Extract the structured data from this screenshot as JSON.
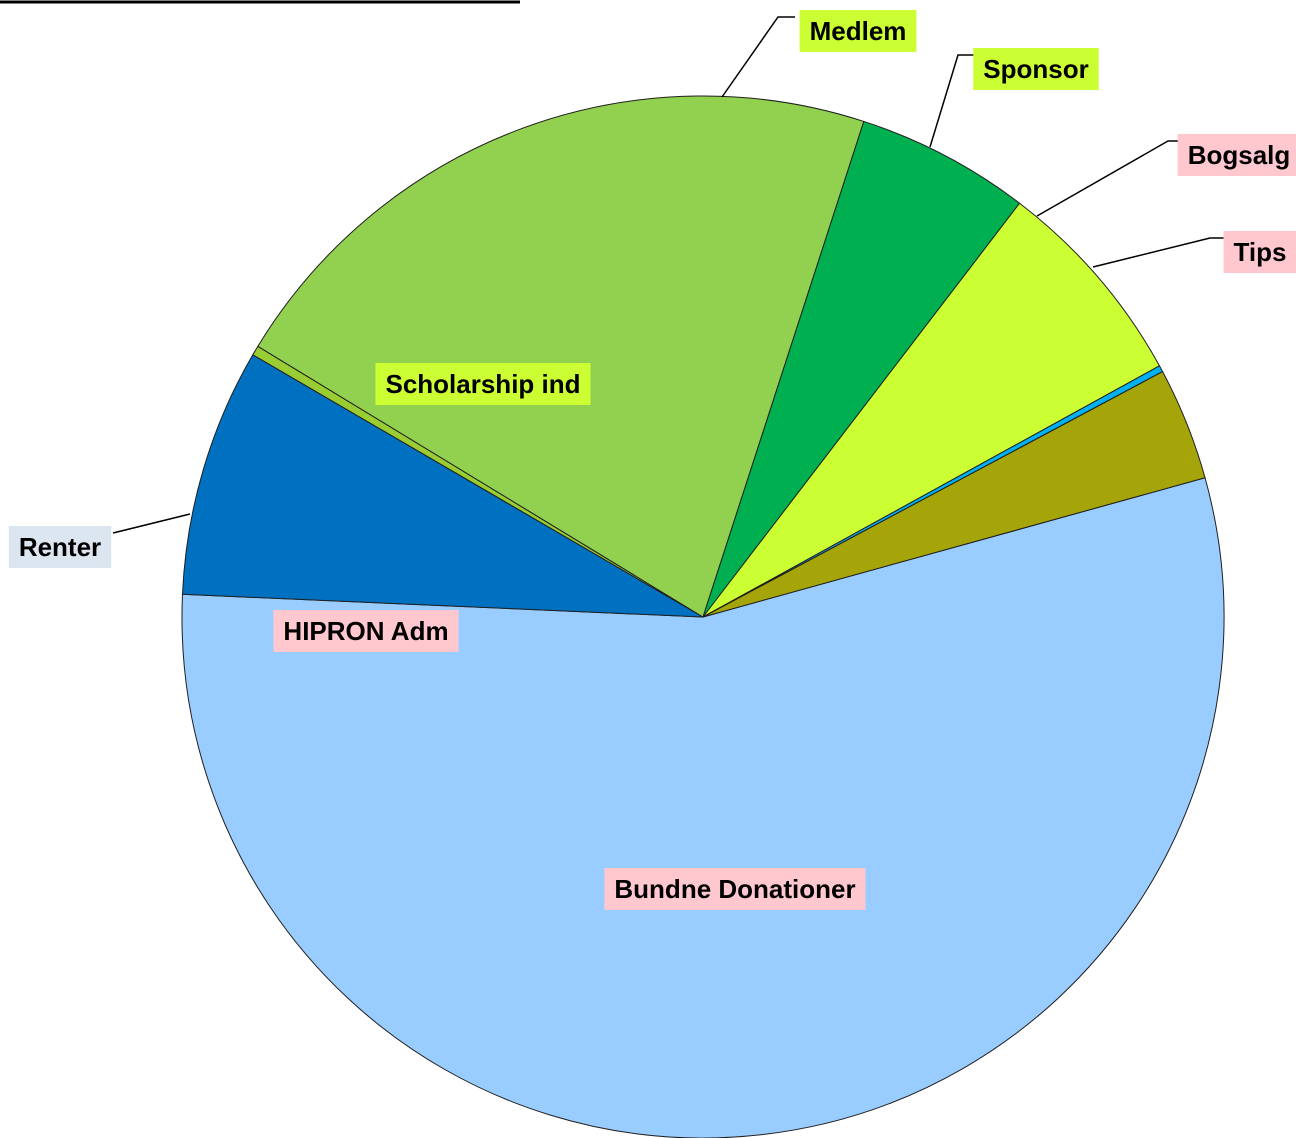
{
  "chart_data": {
    "type": "pie",
    "title": "",
    "slices": [
      {
        "label": "Bundne Donationer",
        "value": 55.0,
        "color": "#99ccff",
        "label_bg": "#ffc7ce",
        "label_pos": "inside"
      },
      {
        "label": "HIPRON Adm",
        "value": 7.7,
        "color": "#0070c0",
        "label_bg": "#ffc7ce",
        "label_pos": "inside"
      },
      {
        "label": "Renter",
        "value": 0.3,
        "color": "#9acd32",
        "label_bg": "#dce6f1",
        "label_pos": "outside-left"
      },
      {
        "label": "Scholarship ind",
        "value": 21.3,
        "color": "#92d050",
        "label_bg": "#ccff33",
        "label_pos": "inside"
      },
      {
        "label": "Medlem",
        "value": 5.4,
        "color": "#00b050",
        "label_bg": "#ccff33",
        "label_pos": "outside-top"
      },
      {
        "label": "Sponsor",
        "value": 6.6,
        "color": "#ccff33",
        "label_bg": "#ccff33",
        "label_pos": "outside-top-right"
      },
      {
        "label": "Bogsalg",
        "value": 0.2,
        "color": "#00b0f0",
        "label_bg": "#ffc7ce",
        "label_pos": "outside-right"
      },
      {
        "label": "Tips",
        "value": 3.5,
        "color": "#a5a50a",
        "label_bg": "#ffc7ce",
        "label_pos": "outside-right"
      }
    ]
  }
}
